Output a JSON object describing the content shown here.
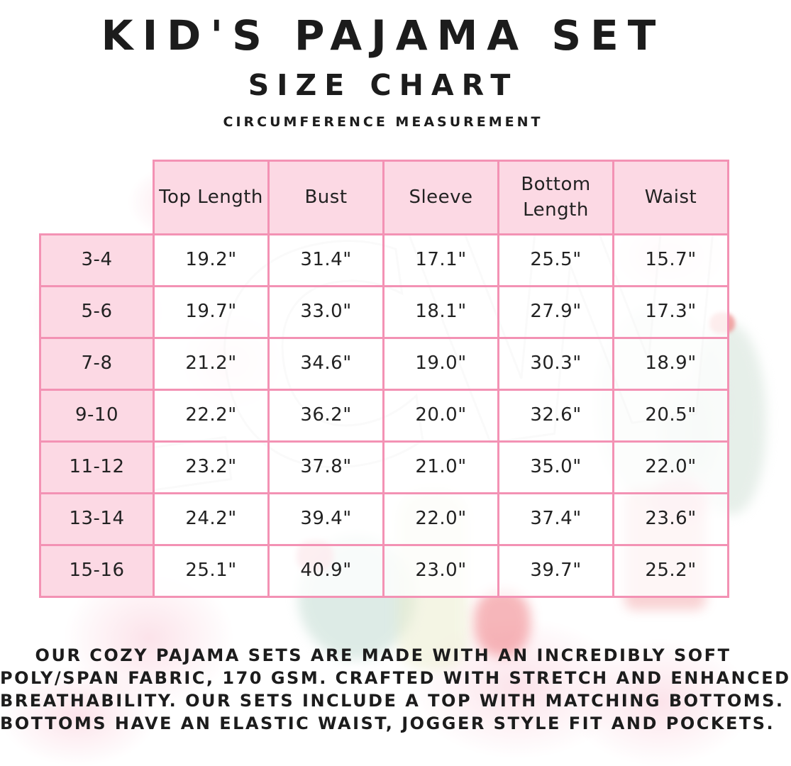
{
  "header": {
    "title": "KID'S PAJAMA SET",
    "subtitle": "SIZE CHART",
    "tagline": "CIRCUMFERENCE MEASUREMENT"
  },
  "watermark": "LCW",
  "chart_data": {
    "type": "table",
    "title": "KID'S PAJAMA SET SIZE CHART",
    "note": "CIRCUMFERENCE MEASUREMENT",
    "columns": [
      "",
      "Top Length",
      "Bust",
      "Sleeve",
      "Bottom Length",
      "Waist"
    ],
    "rows": [
      [
        "3-4",
        "19.2\"",
        "31.4\"",
        "17.1\"",
        "25.5\"",
        "15.7\""
      ],
      [
        "5-6",
        "19.7\"",
        "33.0\"",
        "18.1\"",
        "27.9\"",
        "17.3\""
      ],
      [
        "7-8",
        "21.2\"",
        "34.6\"",
        "19.0\"",
        "30.3\"",
        "18.9\""
      ],
      [
        "9-10",
        "22.2\"",
        "36.2\"",
        "20.0\"",
        "32.6\"",
        "20.5\""
      ],
      [
        "11-12",
        "23.2\"",
        "37.8\"",
        "21.0\"",
        "35.0\"",
        "22.0\""
      ],
      [
        "13-14",
        "24.2\"",
        "39.4\"",
        "22.0\"",
        "37.4\"",
        "23.6\""
      ],
      [
        "15-16",
        "25.1\"",
        "40.9\"",
        "23.0\"",
        "39.7\"",
        "25.2\""
      ]
    ]
  },
  "description_lines": [
    "OUR COZY PAJAMA SETS ARE MADE WITH AN INCREDIBLY SOFT",
    "POLY/SPAN FABRIC, 170 GSM. CRAFTED WITH STRETCH AND ENHANCED",
    "BREATHABILITY. OUR SETS INCLUDE A TOP WITH MATCHING BOTTOMS.",
    "BOTTOMS HAVE AN ELASTIC WAIST, JOGGER STYLE FIT AND POCKETS."
  ],
  "colors": {
    "table_border": "#f392b4",
    "cell_pink": "#fcd9e4",
    "text": "#1c1c1c"
  }
}
